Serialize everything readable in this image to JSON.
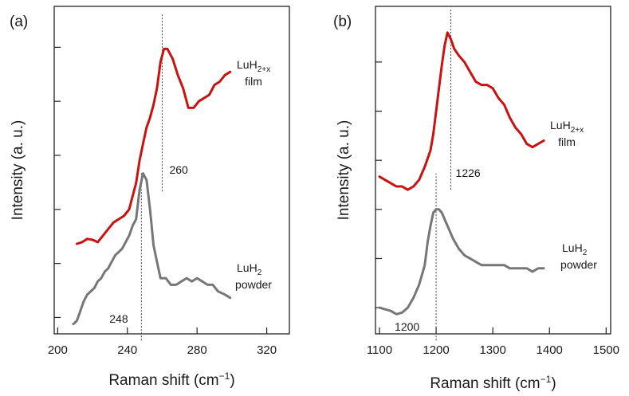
{
  "colors": {
    "film": "#cc1111",
    "powder": "#777777"
  },
  "chart_data": [
    {
      "type": "line",
      "panel_label": "(a)",
      "xlabel_prefix": "Raman shift (cm",
      "xlabel_sup": "−1",
      "xlabel_suffix": ")",
      "ylabel": "Intensity (a. u.)",
      "xlim": [
        198,
        333
      ],
      "ylim": [
        0,
        1
      ],
      "xticks": [
        200,
        240,
        280,
        320
      ],
      "xtick_labels": [
        "200",
        "240",
        "280",
        "320"
      ],
      "yticks": [
        0.05,
        0.215,
        0.38,
        0.545,
        0.71,
        0.875
      ],
      "peaks": [
        {
          "x": 260,
          "label": "260",
          "y_from": 0.435,
          "y_to": 0.98
        },
        {
          "x": 248,
          "label": "248",
          "y_from": -0.02,
          "y_to": 0.495
        }
      ],
      "series": [
        {
          "name": "film",
          "label_main": "LuH",
          "label_sub": "2+x",
          "label_line2": "film",
          "x": [
            211,
            214,
            217,
            220,
            223,
            226,
            229,
            232,
            235,
            238,
            241,
            243,
            245,
            247,
            249,
            251,
            253,
            255,
            257,
            259,
            261,
            263,
            266,
            269,
            272,
            275,
            278,
            281,
            284,
            287,
            290,
            293,
            296,
            299
          ],
          "y": [
            0.275,
            0.28,
            0.29,
            0.287,
            0.28,
            0.3,
            0.32,
            0.34,
            0.35,
            0.36,
            0.38,
            0.42,
            0.46,
            0.53,
            0.58,
            0.63,
            0.66,
            0.7,
            0.75,
            0.83,
            0.87,
            0.87,
            0.84,
            0.79,
            0.75,
            0.69,
            0.69,
            0.71,
            0.72,
            0.73,
            0.76,
            0.77,
            0.79,
            0.8
          ]
        },
        {
          "name": "powder",
          "label_main": "LuH",
          "label_sub": "2",
          "label_line2": "powder",
          "x": [
            209,
            211,
            213,
            215,
            217,
            219,
            221,
            223,
            225,
            227,
            229,
            231,
            233,
            235,
            237,
            239,
            241,
            243,
            245,
            247,
            249,
            251,
            253,
            255,
            257,
            259,
            262,
            265,
            268,
            271,
            274,
            277,
            280,
            283,
            286,
            289,
            292,
            296,
            299
          ],
          "y": [
            0.03,
            0.04,
            0.07,
            0.1,
            0.12,
            0.13,
            0.14,
            0.16,
            0.17,
            0.19,
            0.2,
            0.22,
            0.24,
            0.25,
            0.26,
            0.28,
            0.3,
            0.33,
            0.35,
            0.44,
            0.49,
            0.47,
            0.38,
            0.27,
            0.22,
            0.17,
            0.17,
            0.15,
            0.15,
            0.16,
            0.17,
            0.16,
            0.17,
            0.16,
            0.15,
            0.15,
            0.13,
            0.12,
            0.11
          ]
        }
      ]
    },
    {
      "type": "line",
      "panel_label": "(b)",
      "xlabel_prefix": "Raman shift (cm",
      "xlabel_sup": "−1",
      "xlabel_suffix": ")",
      "ylabel": "Intensity (a. u.)",
      "xlim": [
        1093,
        1508
      ],
      "ylim": [
        0,
        1
      ],
      "xticks": [
        1100,
        1200,
        1300,
        1400,
        1500
      ],
      "xtick_labels": [
        "1100",
        "1200",
        "1300",
        "1400",
        "1500"
      ],
      "yticks": [
        0.08,
        0.23,
        0.38,
        0.53,
        0.68,
        0.83
      ],
      "peaks": [
        {
          "x": 1226,
          "label": "1226",
          "y_from": 0.44,
          "y_to": 0.99
        },
        {
          "x": 1200,
          "label": "1200",
          "y_from": -0.02,
          "y_to": 0.49
        }
      ],
      "series": [
        {
          "name": "film",
          "label_main": "LuH",
          "label_sub": "2+x",
          "label_line2": "film",
          "x": [
            1100,
            1110,
            1120,
            1130,
            1140,
            1150,
            1160,
            1170,
            1180,
            1190,
            1195,
            1200,
            1205,
            1210,
            1215,
            1220,
            1226,
            1232,
            1240,
            1250,
            1260,
            1270,
            1280,
            1290,
            1300,
            1310,
            1320,
            1330,
            1340,
            1350,
            1360,
            1370,
            1380,
            1390
          ],
          "y": [
            0.48,
            0.47,
            0.46,
            0.45,
            0.45,
            0.44,
            0.45,
            0.47,
            0.51,
            0.56,
            0.61,
            0.68,
            0.75,
            0.82,
            0.88,
            0.92,
            0.9,
            0.87,
            0.85,
            0.83,
            0.8,
            0.77,
            0.76,
            0.76,
            0.75,
            0.72,
            0.7,
            0.66,
            0.63,
            0.61,
            0.58,
            0.57,
            0.58,
            0.59
          ]
        },
        {
          "name": "powder",
          "label_main": "LuH",
          "label_sub": "2",
          "label_line2": "powder",
          "x": [
            1100,
            1110,
            1120,
            1130,
            1140,
            1150,
            1160,
            1170,
            1180,
            1185,
            1190,
            1195,
            1200,
            1205,
            1210,
            1215,
            1220,
            1230,
            1240,
            1250,
            1260,
            1270,
            1280,
            1290,
            1300,
            1310,
            1320,
            1330,
            1340,
            1350,
            1360,
            1370,
            1380,
            1390
          ],
          "y": [
            0.08,
            0.075,
            0.07,
            0.06,
            0.065,
            0.08,
            0.11,
            0.15,
            0.21,
            0.28,
            0.33,
            0.37,
            0.38,
            0.38,
            0.37,
            0.35,
            0.33,
            0.29,
            0.26,
            0.24,
            0.23,
            0.22,
            0.21,
            0.21,
            0.21,
            0.21,
            0.21,
            0.2,
            0.2,
            0.2,
            0.2,
            0.19,
            0.2,
            0.2
          ]
        }
      ]
    }
  ]
}
